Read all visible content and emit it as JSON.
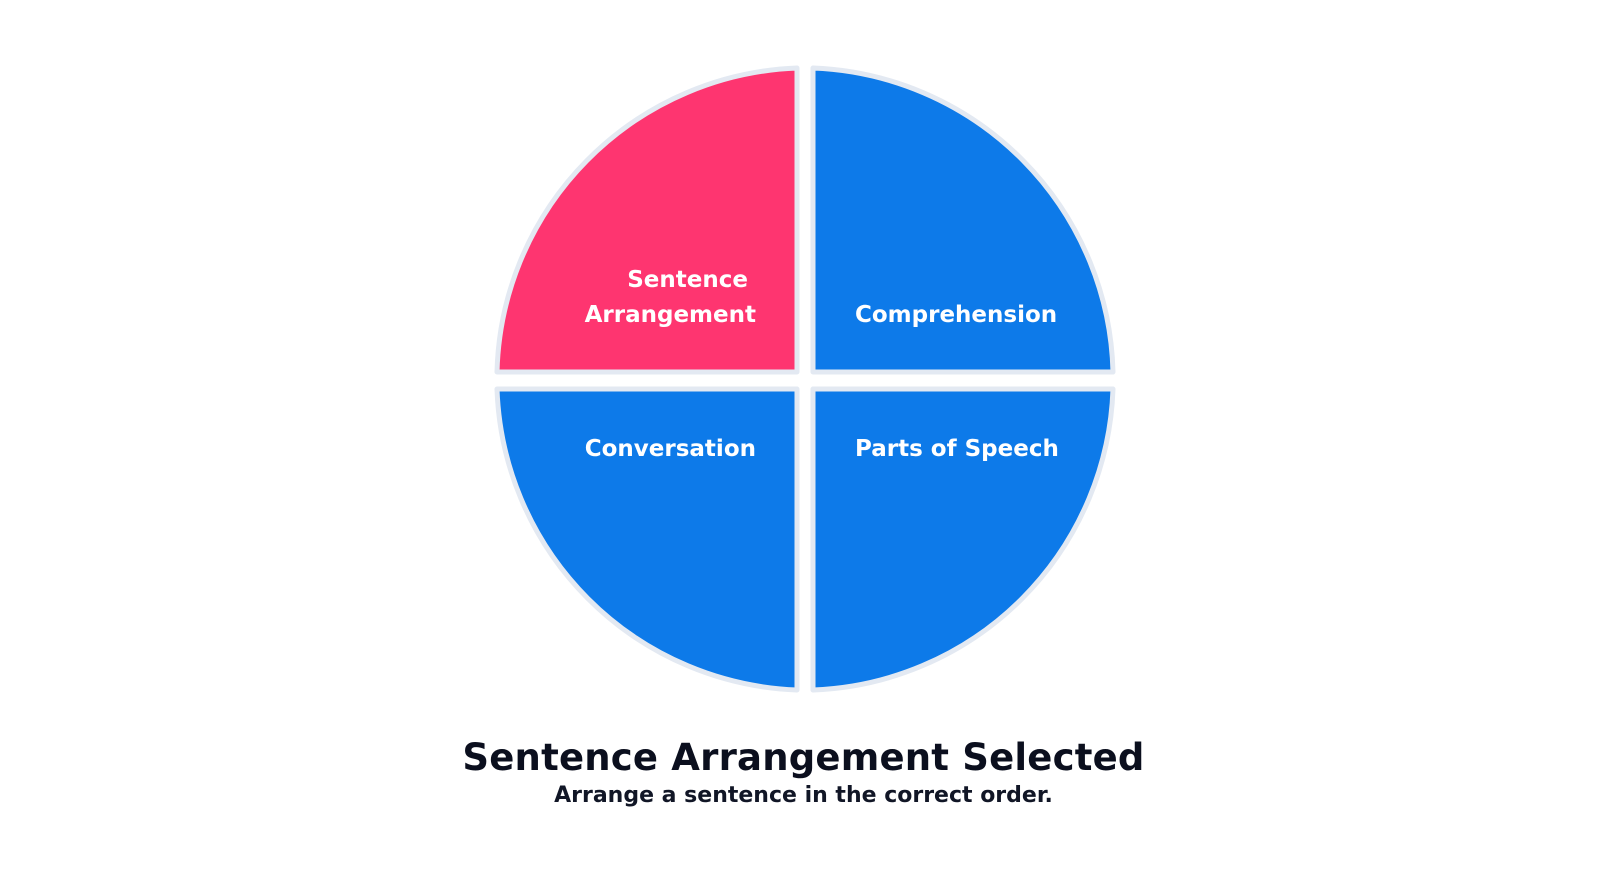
{
  "wheel": {
    "quadrants": [
      {
        "id": "sentence-arrangement",
        "label_lines": [
          "Sentence",
          "Arrangement"
        ],
        "selected": true,
        "color": "#fe3570"
      },
      {
        "id": "comprehension",
        "label_lines": [
          "Comprehension"
        ],
        "selected": false,
        "color": "#0d7ae9"
      },
      {
        "id": "conversation",
        "label_lines": [
          "Conversation"
        ],
        "selected": false,
        "color": "#0d7ae9"
      },
      {
        "id": "parts-of-speech",
        "label_lines": [
          "Parts of Speech"
        ],
        "selected": false,
        "color": "#0d7ae9"
      }
    ],
    "border_color": "#e3e9f2"
  },
  "selection": {
    "title": "Sentence Arrangement Selected",
    "description": "Arrange a sentence in the correct order."
  }
}
